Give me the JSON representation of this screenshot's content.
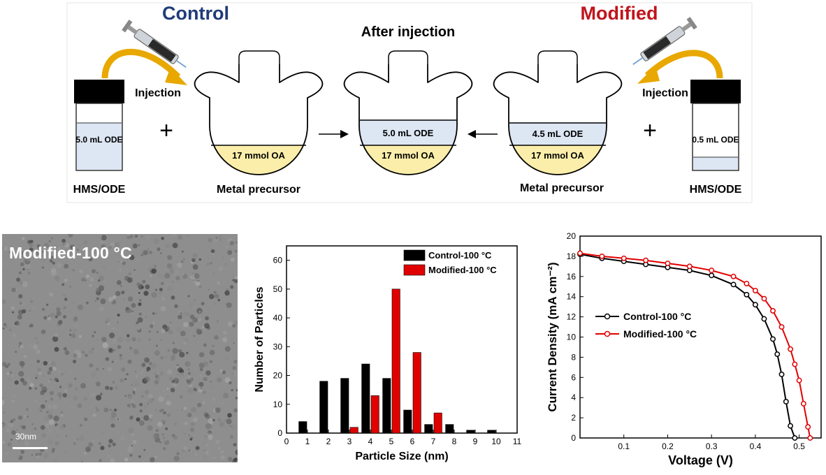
{
  "scheme": {
    "control_title": "Control",
    "modified_title": "Modified",
    "after_injection": "After injection",
    "injection_left": "Injection",
    "injection_right": "Injection",
    "vial_left_label": "5.0 mL ODE",
    "vial_right_label": "0.5 mL ODE",
    "hms_left": "HMS/ODE",
    "hms_right": "HMS/ODE",
    "flask_left_oa": "17 mmol OA",
    "flask_center_ode": "5.0 mL ODE",
    "flask_center_oa": "17 mmol OA",
    "flask_right_ode": "4.5 mL ODE",
    "flask_right_oa": "17 mmol OA",
    "metal_left": "Metal precursor",
    "metal_right": "Metal precursor",
    "plus": "+",
    "colors": {
      "control": "#1f3c7a",
      "modified": "#c0141c",
      "oa": "#fbeeaa",
      "ode": "#dde6f3",
      "arrow": "#e8a800"
    }
  },
  "tem": {
    "title": "Modified-100 °C",
    "scale": "30nm"
  },
  "chart_data": [
    {
      "type": "bar",
      "xlabel": "Particle Size (nm)",
      "ylabel": "Number of Particles",
      "xlim": [
        0,
        11
      ],
      "ylim": [
        0,
        65
      ],
      "xticks": [
        "0",
        "1",
        "2",
        "3",
        "4",
        "5",
        "6",
        "7",
        "8",
        "9",
        "10",
        "11"
      ],
      "yticks": [
        "0",
        "10",
        "20",
        "30",
        "40",
        "50",
        "60"
      ],
      "legend": "top-right",
      "series": [
        {
          "name": "Control-100 °C",
          "color": "#000000",
          "x": [
            1,
            2,
            3,
            4,
            5,
            6,
            7,
            8,
            9,
            10
          ],
          "values": [
            4,
            18,
            19,
            24,
            19,
            8,
            3,
            3,
            1,
            1
          ]
        },
        {
          "name": "Modified-100 °C",
          "color": "#e00000",
          "x": [
            3,
            4,
            5,
            6,
            7
          ],
          "values": [
            2,
            13,
            50,
            28,
            7
          ]
        }
      ]
    },
    {
      "type": "line",
      "xlabel": "Voltage (V)",
      "ylabel": "Current Density (mA cm⁻²)",
      "xlim": [
        0,
        0.55
      ],
      "ylim": [
        0,
        20
      ],
      "xticks": [
        "0.1",
        "0.2",
        "0.3",
        "0.4",
        "0.5"
      ],
      "yticks": [
        "0",
        "2",
        "4",
        "6",
        "8",
        "10",
        "12",
        "14",
        "16",
        "18",
        "20"
      ],
      "legend": "center-left",
      "series": [
        {
          "name": "Control-100 °C",
          "color": "#000000",
          "x": [
            0,
            0.05,
            0.1,
            0.15,
            0.2,
            0.25,
            0.3,
            0.35,
            0.38,
            0.4,
            0.42,
            0.44,
            0.45,
            0.46,
            0.47,
            0.48,
            0.49
          ],
          "y": [
            18.2,
            17.8,
            17.5,
            17.2,
            16.9,
            16.6,
            16.1,
            15.2,
            14.2,
            13.2,
            11.8,
            9.8,
            8.3,
            6.3,
            3.6,
            1.2,
            0
          ]
        },
        {
          "name": "Modified-100 °C",
          "color": "#e00000",
          "x": [
            0,
            0.05,
            0.1,
            0.15,
            0.2,
            0.25,
            0.3,
            0.35,
            0.38,
            0.4,
            0.42,
            0.44,
            0.46,
            0.48,
            0.49,
            0.5,
            0.51,
            0.52,
            0.525
          ],
          "y": [
            18.3,
            18.0,
            17.8,
            17.6,
            17.3,
            17.0,
            16.6,
            16.0,
            15.3,
            14.6,
            13.8,
            12.6,
            11.0,
            8.8,
            7.3,
            5.7,
            3.4,
            1.1,
            0
          ]
        }
      ]
    }
  ]
}
